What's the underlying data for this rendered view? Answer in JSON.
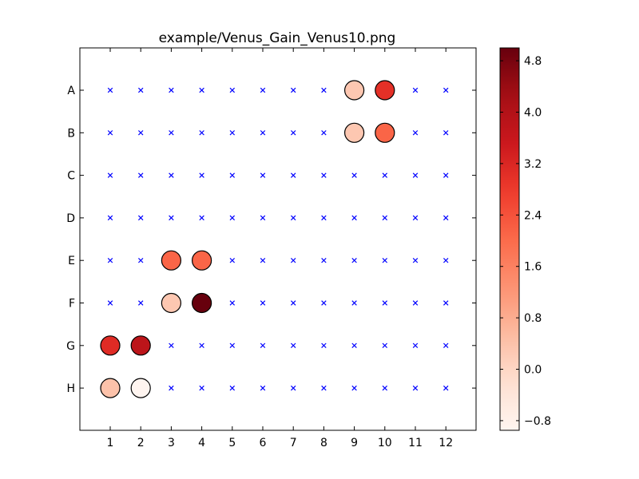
{
  "chart_data": {
    "type": "scatter",
    "title": "example/Venus_Gain_Venus10.png",
    "xlabel": "",
    "ylabel": "",
    "x_categories": [
      "1",
      "2",
      "3",
      "4",
      "5",
      "6",
      "7",
      "8",
      "9",
      "10",
      "11",
      "12"
    ],
    "y_categories": [
      "A",
      "B",
      "C",
      "D",
      "E",
      "F",
      "G",
      "H"
    ],
    "points": [
      {
        "col": 9,
        "row": "A",
        "value": 0.3
      },
      {
        "col": 10,
        "row": "A",
        "value": 3.0
      },
      {
        "col": 9,
        "row": "B",
        "value": 0.3
      },
      {
        "col": 10,
        "row": "B",
        "value": 2.1
      },
      {
        "col": 3,
        "row": "E",
        "value": 2.1
      },
      {
        "col": 4,
        "row": "E",
        "value": 2.1
      },
      {
        "col": 3,
        "row": "F",
        "value": 0.3
      },
      {
        "col": 4,
        "row": "F",
        "value": 5.0
      },
      {
        "col": 1,
        "row": "G",
        "value": 3.1
      },
      {
        "col": 2,
        "row": "G",
        "value": 3.8
      },
      {
        "col": 1,
        "row": "H",
        "value": 0.4
      },
      {
        "col": 2,
        "row": "H",
        "value": -0.95
      }
    ],
    "empty_marker": "x",
    "empty_marker_color": "#0000ff",
    "colormap": "Reds",
    "colorbar": {
      "min": -0.95,
      "max": 5.0,
      "ticks": [
        -0.8,
        0.0,
        0.8,
        1.6,
        2.4,
        3.2,
        4.0,
        4.8
      ],
      "tick_labels": [
        "−0.8",
        "0.0",
        "0.8",
        "1.6",
        "2.4",
        "3.2",
        "4.0",
        "4.8"
      ]
    },
    "grid": false,
    "legend": "none"
  }
}
